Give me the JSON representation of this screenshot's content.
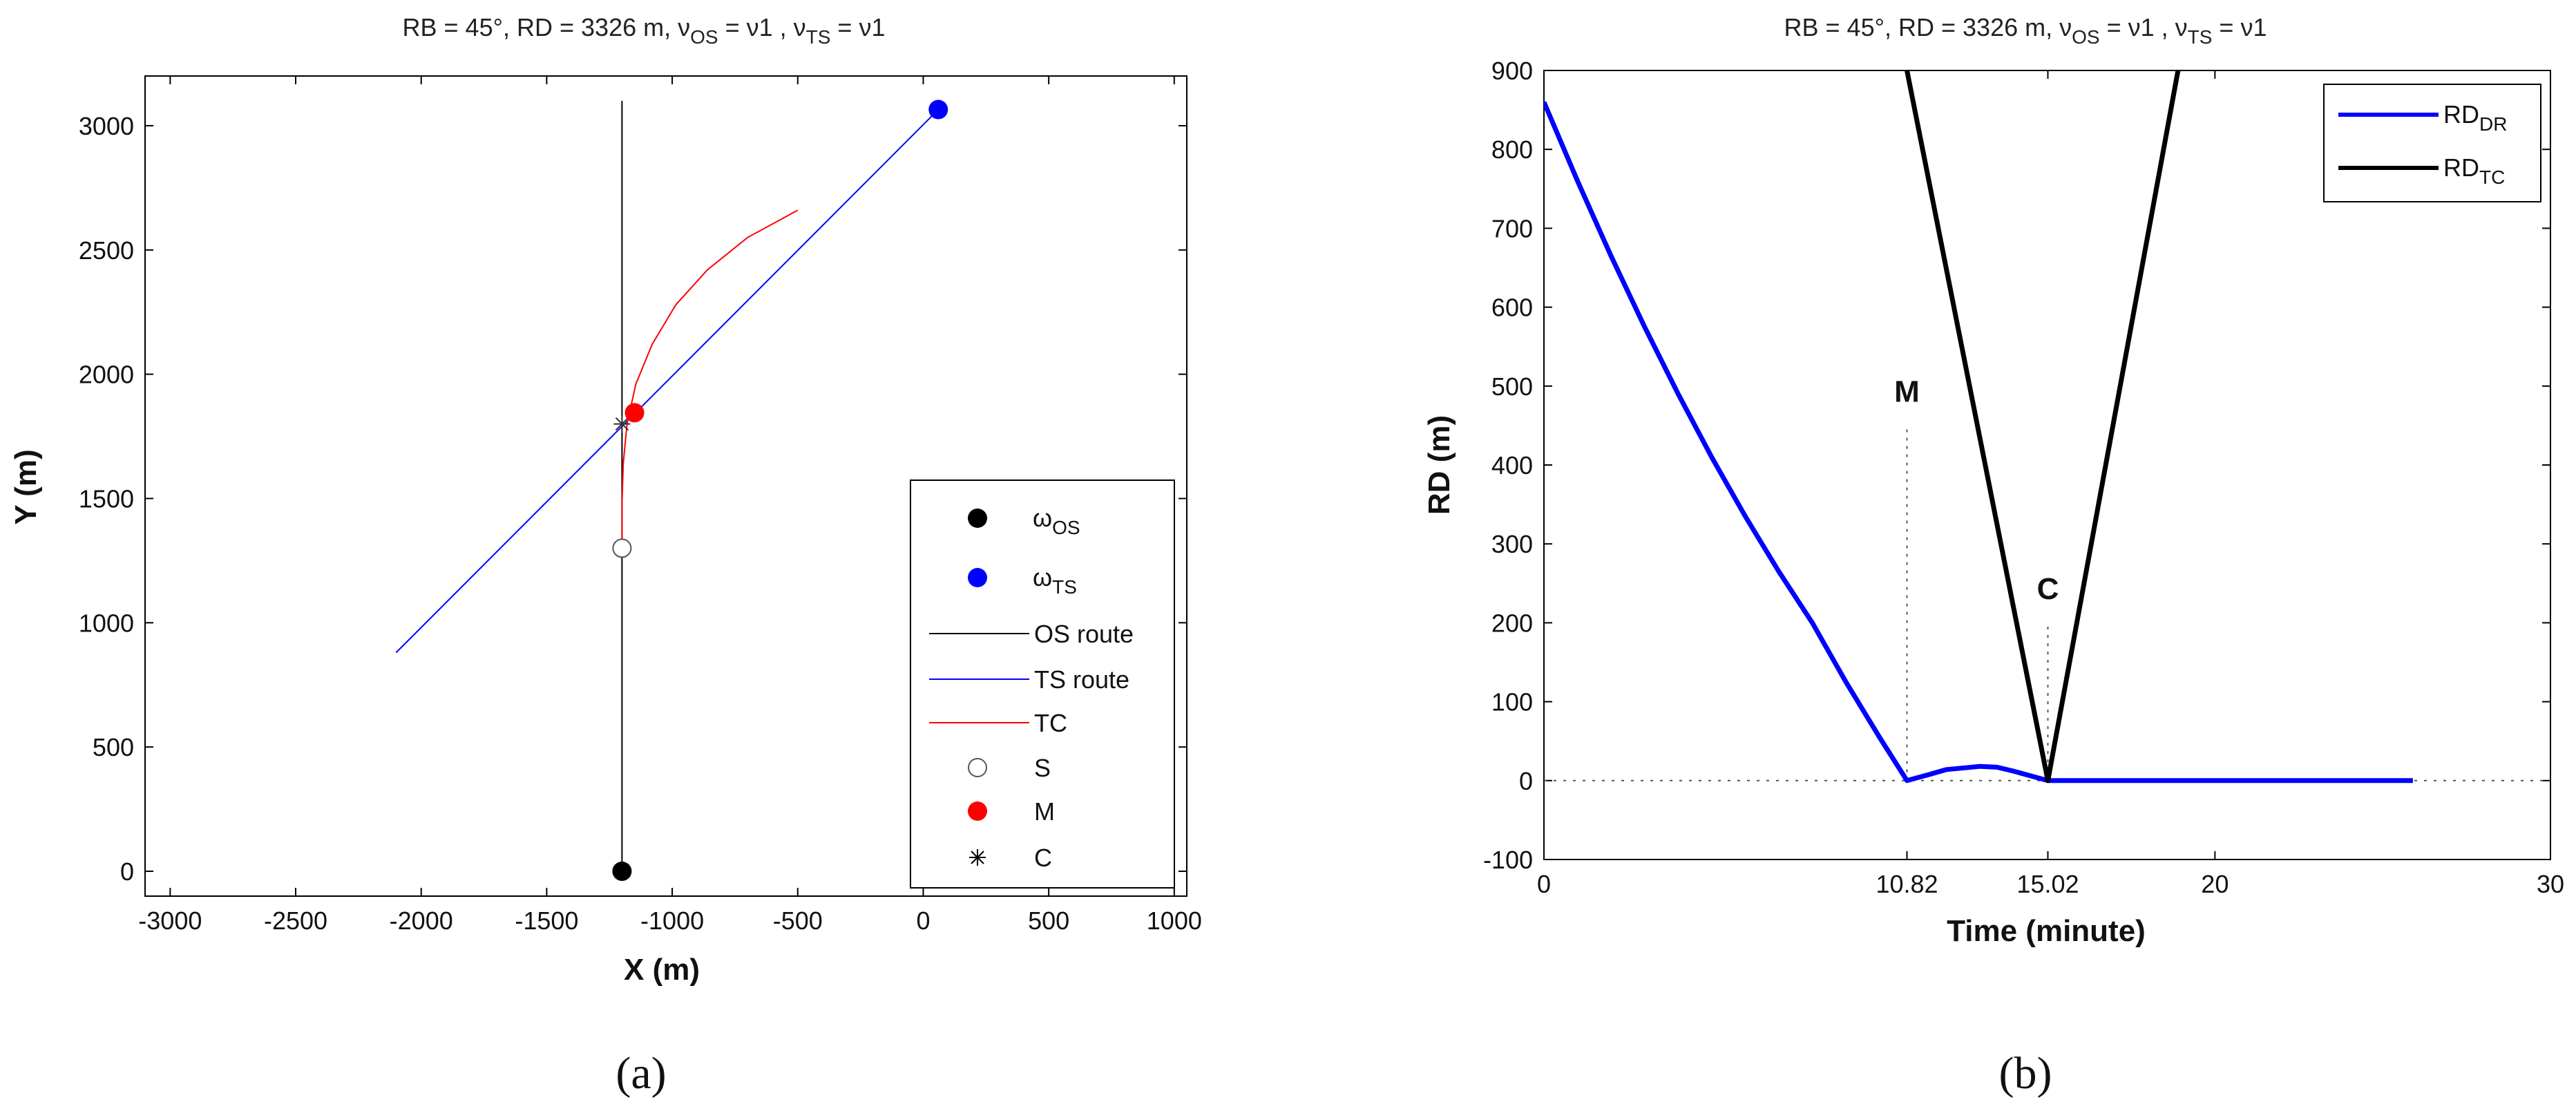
{
  "chart_data": [
    {
      "panel": "a",
      "type": "scatter",
      "caption": "(a)",
      "title_parts": {
        "prefix": "RB = 45°, RD = 3326 m, ",
        "nu1": "ν",
        "sub1": "OS",
        "mid": " = ν1 , ",
        "nu2": "ν",
        "sub2": "TS",
        "end": " = ν1"
      },
      "xlabel": "X (m)",
      "ylabel": "Y (m)",
      "xlim": [
        -3100,
        1050
      ],
      "ylim": [
        -100,
        3200
      ],
      "xticks": [
        -3000,
        -2500,
        -2000,
        -1500,
        -1000,
        -500,
        0,
        500,
        1000
      ],
      "yticks": [
        0,
        500,
        1000,
        1500,
        2000,
        2500,
        3000
      ],
      "series": [
        {
          "name": "OS route",
          "color": "#000000",
          "points": [
            [
              -1200,
              0
            ],
            [
              -1200,
              3100
            ]
          ]
        },
        {
          "name": "TS route",
          "color": "#0000ff",
          "points": [
            [
              -2100,
              880
            ],
            [
              60,
              3065
            ]
          ]
        },
        {
          "name": "TC",
          "color": "#ff0000",
          "points": [
            [
              -1200,
              1300
            ],
            [
              -1200,
              1480
            ],
            [
              -1195,
              1640
            ],
            [
              -1180,
              1800
            ],
            [
              -1145,
              1960
            ],
            [
              -1080,
              2120
            ],
            [
              -985,
              2280
            ],
            [
              -860,
              2420
            ],
            [
              -700,
              2550
            ],
            [
              -500,
              2660
            ]
          ]
        }
      ],
      "markers": {
        "os": {
          "x": -1200,
          "y": 0,
          "color": "#000000"
        },
        "ts": {
          "x": 60,
          "y": 3065,
          "color": "#0000ff"
        },
        "s": {
          "x": -1200,
          "y": 1300,
          "color": "#ffffff"
        },
        "m": {
          "x": -1150,
          "y": 1845,
          "color": "#ff0000"
        },
        "c": {
          "x": -1200,
          "y": 1800
        }
      },
      "legend": {
        "placement": "bottom-right",
        "entries": [
          {
            "label": "ω",
            "sub": "OS",
            "kind": "dot",
            "color": "#000000"
          },
          {
            "label": "ω",
            "sub": "TS",
            "kind": "dot",
            "color": "#0000ff"
          },
          {
            "label": "OS route",
            "sub": "",
            "kind": "line",
            "color": "#000000"
          },
          {
            "label": "TS route",
            "sub": "",
            "kind": "line",
            "color": "#0000ff"
          },
          {
            "label": "TC",
            "sub": "",
            "kind": "line",
            "color": "#ff0000"
          },
          {
            "label": "S",
            "sub": "",
            "kind": "hollow",
            "color": "#ffffff"
          },
          {
            "label": "M",
            "sub": "",
            "kind": "dot",
            "color": "#ff0000"
          },
          {
            "label": "C",
            "sub": "",
            "kind": "star",
            "color": "#000000"
          }
        ]
      }
    },
    {
      "panel": "b",
      "type": "line",
      "caption": "(b)",
      "title_parts": {
        "prefix": "RB = 45°, RD = 3326 m, ",
        "nu1": "ν",
        "sub1": "OS",
        "mid": " = ν1 , ",
        "nu2": "ν",
        "sub2": "TS",
        "end": " = ν1"
      },
      "xlabel": "Time (minute)",
      "ylabel": "RD (m)",
      "xlim": [
        0,
        30
      ],
      "ylim": [
        -100,
        900
      ],
      "xticks": [
        {
          "value": 0,
          "label": "0"
        },
        {
          "value": 10.82,
          "label": "10.82"
        },
        {
          "value": 15.02,
          "label": "15.02"
        },
        {
          "value": 20,
          "label": "20"
        },
        {
          "value": 30,
          "label": "30"
        }
      ],
      "yticks": [
        -100,
        0,
        100,
        200,
        300,
        400,
        500,
        600,
        700,
        800,
        900
      ],
      "series": [
        {
          "name": "RD_DR",
          "legend_main": "RD",
          "legend_sub": "DR",
          "color": "#0000ff",
          "points": [
            [
              0,
              860
            ],
            [
              1,
              760
            ],
            [
              2,
              665
            ],
            [
              3,
              575
            ],
            [
              4,
              490
            ],
            [
              5,
              410
            ],
            [
              6,
              335
            ],
            [
              7,
              265
            ],
            [
              8,
              200
            ],
            [
              9,
              125
            ],
            [
              10,
              55
            ],
            [
              10.82,
              0
            ],
            [
              11.5,
              8
            ],
            [
              12,
              14
            ],
            [
              13,
              18
            ],
            [
              13.5,
              17
            ],
            [
              14,
              12
            ],
            [
              14.5,
              6
            ],
            [
              15.02,
              0
            ],
            [
              16,
              0
            ],
            [
              20,
              0
            ],
            [
              25,
              0
            ],
            [
              25.9,
              0
            ]
          ]
        },
        {
          "name": "RD_TC",
          "legend_main": "RD",
          "legend_sub": "TC",
          "color": "#000000",
          "points": [
            [
              10.82,
              900
            ],
            [
              15.02,
              0
            ],
            [
              18.9,
              900
            ]
          ]
        }
      ],
      "annotations": [
        {
          "text": "M",
          "x": 10.82,
          "y_text": 480,
          "y_line_top": 445,
          "y_line_bottom": 0
        },
        {
          "text": "C",
          "x": 15.02,
          "y_text": 230,
          "y_line_top": 195,
          "y_line_bottom": 0
        }
      ],
      "legend": {
        "placement": "top-right"
      }
    }
  ]
}
